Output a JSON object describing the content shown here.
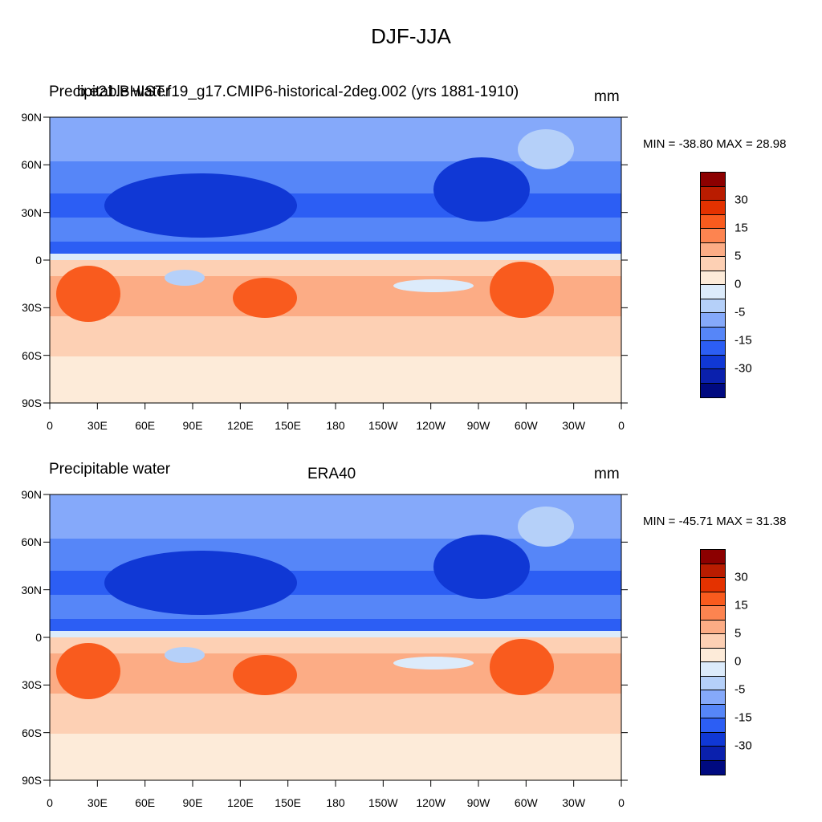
{
  "title": "DJF-JJA",
  "colorbar": {
    "colors": [
      "#8c0000",
      "#b91c00",
      "#e43200",
      "#f95b1e",
      "#fd8450",
      "#fcac85",
      "#fdd0b4",
      "#fdebd9",
      "#dcebfb",
      "#b5d0f9",
      "#85a9fa",
      "#5686f8",
      "#2c5ef4",
      "#1038d5",
      "#0a20ad",
      "#000a80"
    ],
    "labels": [
      "30",
      "15",
      "5",
      "0",
      "-5",
      "-15",
      "-30"
    ]
  },
  "axes": {
    "y_ticks": [
      "90N",
      "60N",
      "30N",
      "0",
      "30S",
      "60S",
      "90S"
    ],
    "x_ticks": [
      "0",
      "30E",
      "60E",
      "90E",
      "120E",
      "150E",
      "180",
      "150W",
      "120W",
      "90W",
      "60W",
      "30W",
      "0"
    ]
  },
  "panels": [
    {
      "left_title": "Precipitable water",
      "center_title": "b.e21.BHIST.f19_g17.CMIP6-historical-2deg.002 (yrs 1881-1910)",
      "units": "mm",
      "minmax": "MIN = -38.80 MAX =  28.98"
    },
    {
      "left_title": "Precipitable water",
      "center_title": "ERA40",
      "units": "mm",
      "minmax": "MIN = -45.71 MAX =  31.38"
    }
  ]
}
